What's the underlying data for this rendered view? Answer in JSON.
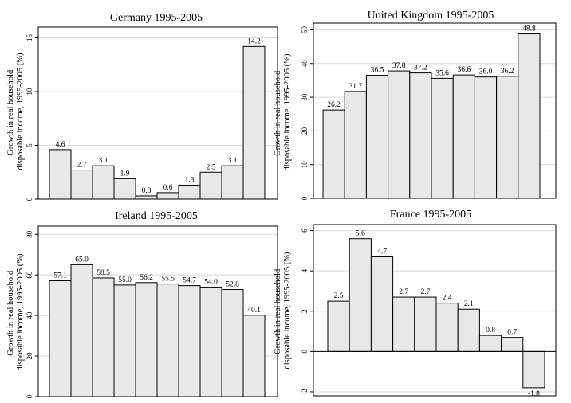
{
  "ylabel_line1": "Growth in real household",
  "ylabel_line2": "disposable income, 1995-2005 (%)",
  "chart_data": [
    {
      "type": "bar",
      "title": "Germany 1995-2005",
      "values": [
        4.6,
        2.7,
        3.1,
        1.9,
        0.3,
        0.6,
        1.3,
        2.5,
        3.1,
        14.2
      ],
      "labels": [
        "4.6",
        "2.7",
        "3.1",
        "1.9",
        "0.3",
        "0.6",
        "1.3",
        "2.5",
        "3.1",
        "14.2"
      ],
      "ylim": [
        0,
        16
      ],
      "yticks": [
        0,
        5,
        10,
        15
      ],
      "grid": true
    },
    {
      "type": "bar",
      "title": "United Kingdom 1995-2005",
      "values": [
        26.2,
        31.7,
        36.5,
        37.8,
        37.2,
        35.6,
        36.6,
        36.0,
        36.2,
        48.8
      ],
      "labels": [
        "26.2",
        "31.7",
        "36.5",
        "37.8",
        "37.2",
        "35.6",
        "36.6",
        "36.0",
        "36.2",
        "48.8"
      ],
      "ylim": [
        0,
        52
      ],
      "yticks": [
        0,
        10,
        20,
        30,
        40,
        50
      ],
      "grid": true
    },
    {
      "type": "bar",
      "title": "Ireland 1995-2005",
      "values": [
        57.1,
        65.0,
        58.5,
        55.0,
        56.2,
        55.5,
        54.7,
        54.0,
        52.8,
        40.1
      ],
      "labels": [
        "57.1",
        "65.0",
        "58.5",
        "55.0",
        "56.2",
        "55.5",
        "54.7",
        "54.0",
        "52.8",
        "40.1"
      ],
      "ylim": [
        0,
        84
      ],
      "yticks": [
        0,
        20,
        40,
        60,
        80
      ],
      "grid": true
    },
    {
      "type": "bar",
      "title": "France 1995-2005",
      "values": [
        2.5,
        5.6,
        4.7,
        2.7,
        2.7,
        2.4,
        2.1,
        0.8,
        0.7,
        -1.8
      ],
      "labels": [
        "2.5",
        "5.6",
        "4.7",
        "2.7",
        "2.7",
        "2.4",
        "2.1",
        "0.8",
        "0.7",
        "-1.8"
      ],
      "ylim": [
        -2.2,
        6.3
      ],
      "yticks": [
        -2,
        0,
        2,
        4,
        6
      ],
      "grid": true
    }
  ]
}
